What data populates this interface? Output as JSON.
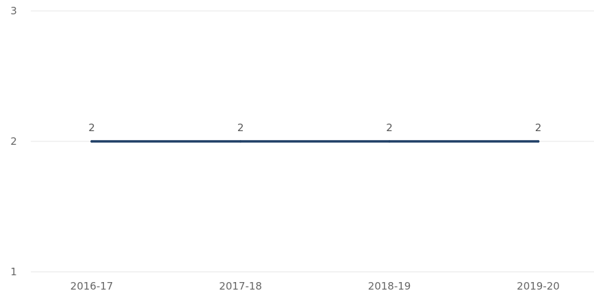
{
  "chart_data": {
    "type": "line",
    "categories": [
      "2016-17",
      "2017-18",
      "2018-19",
      "2019-20"
    ],
    "series": [
      {
        "values": [
          2,
          2,
          2,
          2
        ],
        "color": "#1f3f66"
      }
    ],
    "data_labels": [
      "2",
      "2",
      "2",
      "2"
    ],
    "y_ticks": [
      "1",
      "2",
      "3"
    ],
    "ylim": [
      1,
      3
    ],
    "grid": true,
    "legend": "none",
    "title": "",
    "xlabel": "",
    "ylabel": ""
  }
}
